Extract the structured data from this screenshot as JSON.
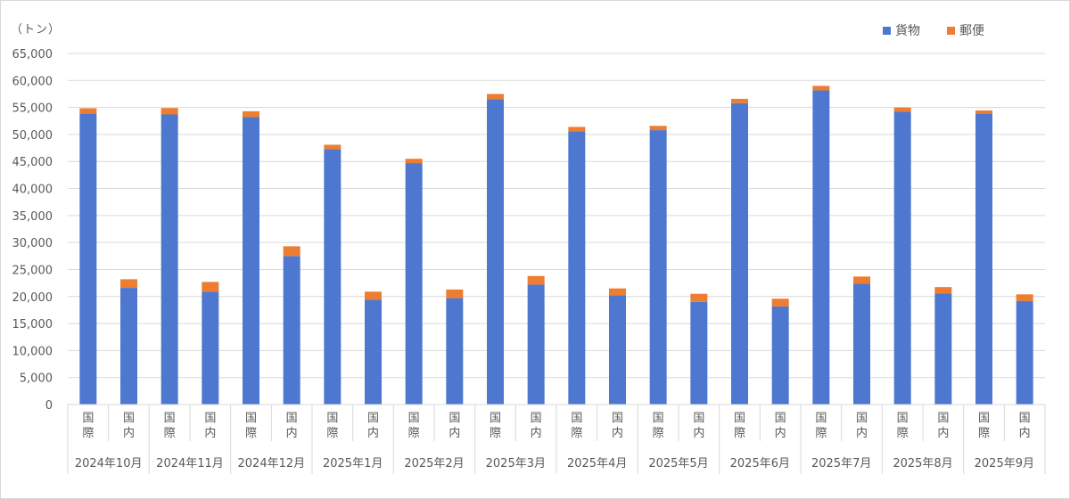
{
  "chart_data": {
    "type": "bar",
    "stacked": true,
    "title": "",
    "ylabel": "（トン）",
    "xlabel": "",
    "ylim": [
      0,
      65000
    ],
    "ytick_step": 5000,
    "yticks": [
      "0",
      "5,000",
      "10,000",
      "15,000",
      "20,000",
      "25,000",
      "30,000",
      "35,000",
      "40,000",
      "45,000",
      "50,000",
      "55,000",
      "60,000",
      "65,000"
    ],
    "grid": true,
    "legend_position": "top-right",
    "groups": [
      "2024年10月",
      "2024年11月",
      "2024年12月",
      "2025年1月",
      "2025年2月",
      "2025年3月",
      "2025年4月",
      "2025年5月",
      "2025年6月",
      "2025年7月",
      "2025年8月",
      "2025年9月"
    ],
    "subcategories": [
      "国際",
      "国内"
    ],
    "categories": [
      "2024年10月 国際",
      "2024年10月 国内",
      "2024年11月 国際",
      "2024年11月 国内",
      "2024年12月 国際",
      "2024年12月 国内",
      "2025年1月 国際",
      "2025年1月 国内",
      "2025年2月 国際",
      "2025年2月 国内",
      "2025年3月 国際",
      "2025年3月 国内",
      "2025年4月 国際",
      "2025年4月 国内",
      "2025年5月 国際",
      "2025年5月 国内",
      "2025年6月 国際",
      "2025年6月 国内",
      "2025年7月 国際",
      "2025年7月 国内",
      "2025年8月 国際",
      "2025年8月 国内",
      "2025年9月 国際",
      "2025年9月 国内"
    ],
    "series": [
      {
        "name": "貨物",
        "color": "#4E78CF",
        "values": [
          53900,
          21600,
          53700,
          20900,
          53200,
          27500,
          47300,
          19400,
          44700,
          19700,
          56550,
          22200,
          50600,
          20200,
          50800,
          19000,
          55800,
          18150,
          58150,
          22350,
          54200,
          20550,
          53900,
          19150
        ]
      },
      {
        "name": "郵便",
        "color": "#ED7D31",
        "values": [
          950,
          1600,
          1200,
          1800,
          1100,
          1800,
          800,
          1500,
          800,
          1600,
          950,
          1600,
          800,
          1300,
          800,
          1500,
          800,
          1450,
          850,
          1350,
          800,
          1200,
          550,
          1250
        ]
      }
    ]
  }
}
